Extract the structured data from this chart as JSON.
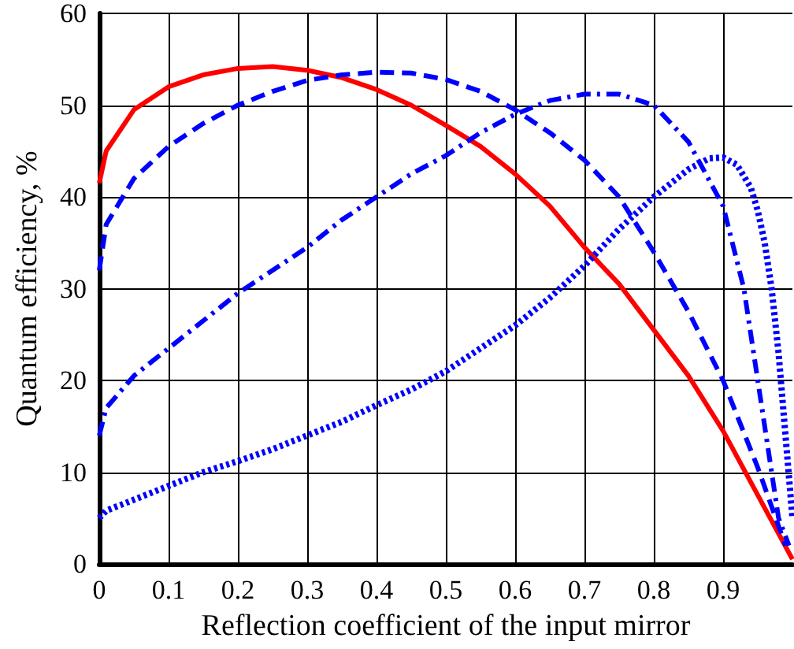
{
  "chart_data": {
    "type": "line",
    "xlabel": "Reflection coefficient of the input mirror",
    "ylabel": "Quantum efficiency, %",
    "xlim": [
      0,
      1
    ],
    "xticks": [
      0,
      0.1,
      0.2,
      0.3,
      0.4,
      0.5,
      0.6,
      0.7,
      0.8,
      0.9
    ],
    "ylim": [
      0,
      60
    ],
    "yticks": [
      0,
      10,
      20,
      30,
      40,
      50,
      60
    ],
    "grid": true,
    "marker": "none",
    "series": [
      {
        "color": "#ff0000",
        "line_style": "solid",
        "x": [
          0,
          0.01,
          0.05,
          0.1,
          0.15,
          0.2,
          0.25,
          0.3,
          0.35,
          0.4,
          0.45,
          0.5,
          0.55,
          0.6,
          0.65,
          0.7,
          0.75,
          0.8,
          0.85,
          0.9,
          0.95,
          1.0
        ],
        "values": [
          41.5,
          45,
          49.5,
          52,
          53.3,
          54,
          54.2,
          53.8,
          53,
          51.7,
          50,
          47.8,
          45.5,
          42.5,
          39,
          34.5,
          30.5,
          25.5,
          20.5,
          14.5,
          7.5,
          0.5
        ]
      },
      {
        "color": "#0000ff",
        "line_style": "dashed",
        "x": [
          0,
          0.01,
          0.05,
          0.1,
          0.15,
          0.2,
          0.25,
          0.3,
          0.35,
          0.4,
          0.45,
          0.5,
          0.55,
          0.6,
          0.65,
          0.7,
          0.75,
          0.8,
          0.85,
          0.9,
          0.95,
          0.99
        ],
        "values": [
          32,
          37,
          42,
          45.5,
          48,
          50,
          51.5,
          52.7,
          53.3,
          53.6,
          53.5,
          52.8,
          51.5,
          49.5,
          47,
          44,
          40,
          34,
          27.5,
          20,
          10.5,
          2
        ]
      },
      {
        "color": "#0000ff",
        "line_style": "dashdot",
        "x": [
          0,
          0.01,
          0.05,
          0.1,
          0.15,
          0.2,
          0.25,
          0.3,
          0.35,
          0.4,
          0.45,
          0.5,
          0.55,
          0.6,
          0.65,
          0.7,
          0.75,
          0.8,
          0.85,
          0.9,
          0.93,
          0.96,
          0.98,
          0.995
        ],
        "values": [
          14,
          17,
          20.5,
          23.5,
          26.5,
          29.5,
          32,
          34.5,
          37.5,
          40,
          42.5,
          44.5,
          47,
          49,
          50.5,
          51.2,
          51.2,
          50,
          46,
          39,
          30,
          15,
          5,
          2
        ]
      },
      {
        "color": "#0000ff",
        "line_style": "dotted",
        "x": [
          0,
          0.01,
          0.05,
          0.1,
          0.15,
          0.2,
          0.25,
          0.3,
          0.35,
          0.4,
          0.45,
          0.5,
          0.55,
          0.6,
          0.65,
          0.7,
          0.75,
          0.8,
          0.85,
          0.88,
          0.9,
          0.92,
          0.94,
          0.95,
          0.96,
          0.97,
          0.98,
          0.99,
          1.0
        ],
        "values": [
          5,
          5.8,
          7,
          8.5,
          10,
          11.2,
          12.5,
          14,
          15.5,
          17.3,
          19,
          21,
          23.5,
          26,
          29,
          32.5,
          36.5,
          40,
          43,
          44.2,
          44.3,
          43.5,
          41,
          38.5,
          35,
          30,
          23,
          14,
          5
        ]
      }
    ]
  }
}
